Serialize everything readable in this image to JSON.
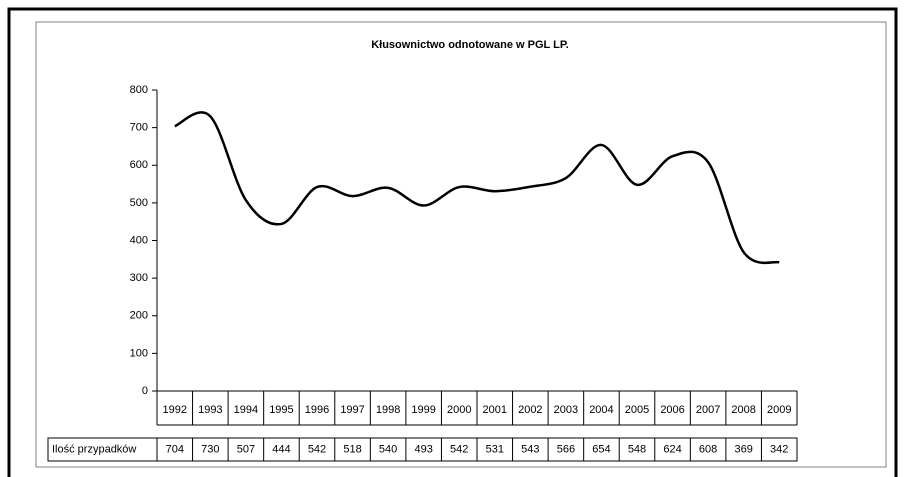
{
  "chart_data": {
    "type": "line",
    "title": "Kłusownictwo odnotowane w PGL LP.",
    "categories": [
      "1992",
      "1993",
      "1994",
      "1995",
      "1996",
      "1997",
      "1998",
      "1999",
      "2000",
      "2001",
      "2002",
      "2003",
      "2004",
      "2005",
      "2006",
      "2007",
      "2008",
      "2009"
    ],
    "series": [
      {
        "name": "Ilość przypadków",
        "color": "#000000",
        "values": [
          704,
          730,
          507,
          444,
          542,
          518,
          540,
          493,
          542,
          531,
          543,
          566,
          654,
          548,
          624,
          608,
          369,
          342
        ]
      }
    ],
    "ylim": [
      0,
      800
    ],
    "yticks": [
      0,
      100,
      200,
      300,
      400,
      500,
      600,
      700,
      800
    ],
    "grid": false
  }
}
